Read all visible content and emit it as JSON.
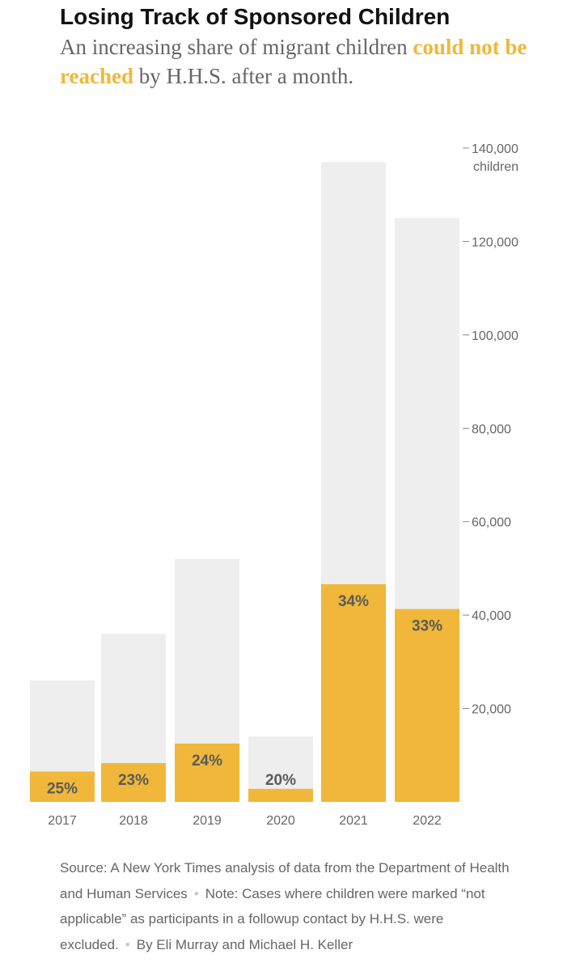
{
  "header": {
    "title": "Losing Track of Sponsored Children",
    "subtitle_before": "An increasing share of migrant children",
    "subtitle_highlight": "could not be reached",
    "subtitle_after": "by H.H.S. after a month."
  },
  "colors": {
    "total_bar": "#eeeeee",
    "unreached_bar": "#f0b73a",
    "highlight_text": "#f0b73a"
  },
  "chart_data": {
    "type": "bar",
    "stacking": "overlay",
    "categories": [
      "2017",
      "2018",
      "2019",
      "2020",
      "2021",
      "2022"
    ],
    "series": [
      {
        "values": [
          26000,
          36000,
          52000,
          14000,
          137000,
          125000
        ]
      },
      {
        "name": "could not be reached",
        "values": [
          6500,
          8300,
          12500,
          2800,
          46600,
          41300
        ]
      }
    ],
    "data_labels": [
      "25%",
      "23%",
      "24%",
      "20%",
      "34%",
      "33%"
    ],
    "ylim": [
      0,
      140000
    ],
    "yticks": [
      20000,
      40000,
      60000,
      80000,
      100000,
      120000,
      140000
    ],
    "ytick_labels": [
      "20,000",
      "40,000",
      "60,000",
      "80,000",
      "100,000",
      "120,000",
      "140,000"
    ],
    "y_unit_label": "children",
    "y_axis_side": "right",
    "grid": false
  },
  "footer": {
    "source": "Source: A New York Times analysis of data from the Department of Health and Human Services",
    "note": "Note: Cases where children were marked “not applicable” as participants in a followup contact by H.H.S. were excluded.",
    "credit": "By Eli Murray and Michael H. Keller"
  }
}
